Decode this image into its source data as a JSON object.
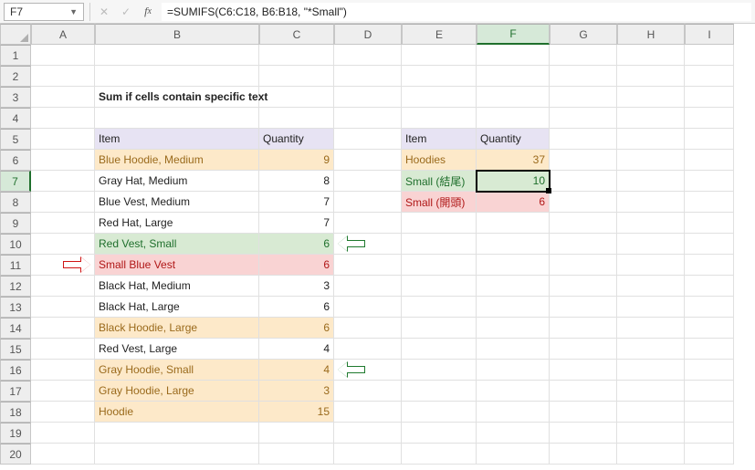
{
  "namebox": "F7",
  "formula": "=SUMIFS(C6:C18, B6:B18, \"*Small\")",
  "columns": [
    "A",
    "B",
    "C",
    "D",
    "E",
    "F",
    "G",
    "H",
    "I"
  ],
  "row_count": 20,
  "selected": {
    "col": "F",
    "row": 7
  },
  "title": "Sum if cells contain specific text",
  "colors": {
    "fill_yellow": "#fde9c9",
    "fill_green": "#d8ead3",
    "fill_pink": "#f9d3d3",
    "fill_header": "#e7e3f3",
    "text_brown": "#9a6a1c",
    "text_green": "#1f6f2c",
    "text_red": "#b01717",
    "gridline": "#e0e0e0",
    "header_bg": "#eeeeee",
    "header_border": "#c6c6c6"
  },
  "main_table": {
    "header": {
      "item": "Item",
      "quantity": "Quantity"
    },
    "rows": [
      {
        "item": "Blue Hoodie, Medium",
        "qty": 9,
        "fill": "yellow",
        "text": "brown"
      },
      {
        "item": "Gray Hat, Medium",
        "qty": 8,
        "fill": "",
        "text": ""
      },
      {
        "item": "Blue Vest, Medium",
        "qty": 7,
        "fill": "",
        "text": ""
      },
      {
        "item": "Red Hat, Large",
        "qty": 7,
        "fill": "",
        "text": ""
      },
      {
        "item": "Red Vest, Small",
        "qty": 6,
        "fill": "green",
        "text": "green",
        "arrow_right_green": true
      },
      {
        "item": "Small Blue Vest",
        "qty": 6,
        "fill": "pink",
        "text": "red",
        "arrow_left_red": true
      },
      {
        "item": "Black Hat, Medium",
        "qty": 3,
        "fill": "",
        "text": ""
      },
      {
        "item": "Black Hat, Large",
        "qty": 6,
        "fill": "",
        "text": ""
      },
      {
        "item": "Black Hoodie, Large",
        "qty": 6,
        "fill": "yellow",
        "text": "brown"
      },
      {
        "item": "Red Vest, Large",
        "qty": 4,
        "fill": "",
        "text": ""
      },
      {
        "item": "Gray Hoodie, Small",
        "qty": 4,
        "fill": "yellow",
        "text": "brown",
        "arrow_right_green": true
      },
      {
        "item": "Gray Hoodie, Large",
        "qty": 3,
        "fill": "yellow",
        "text": "brown"
      },
      {
        "item": "Hoodie",
        "qty": 15,
        "fill": "yellow",
        "text": "brown"
      }
    ]
  },
  "summary_table": {
    "header": {
      "item": "Item",
      "quantity": "Quantity"
    },
    "rows": [
      {
        "item": "Hoodies",
        "qty": 37,
        "fill": "yellow",
        "text": "brown"
      },
      {
        "item": "Small (結尾)",
        "qty": 10,
        "fill": "green",
        "text": "green",
        "selected": true
      },
      {
        "item": "Small (開頭)",
        "qty": 6,
        "fill": "pink",
        "text": "red"
      }
    ]
  }
}
